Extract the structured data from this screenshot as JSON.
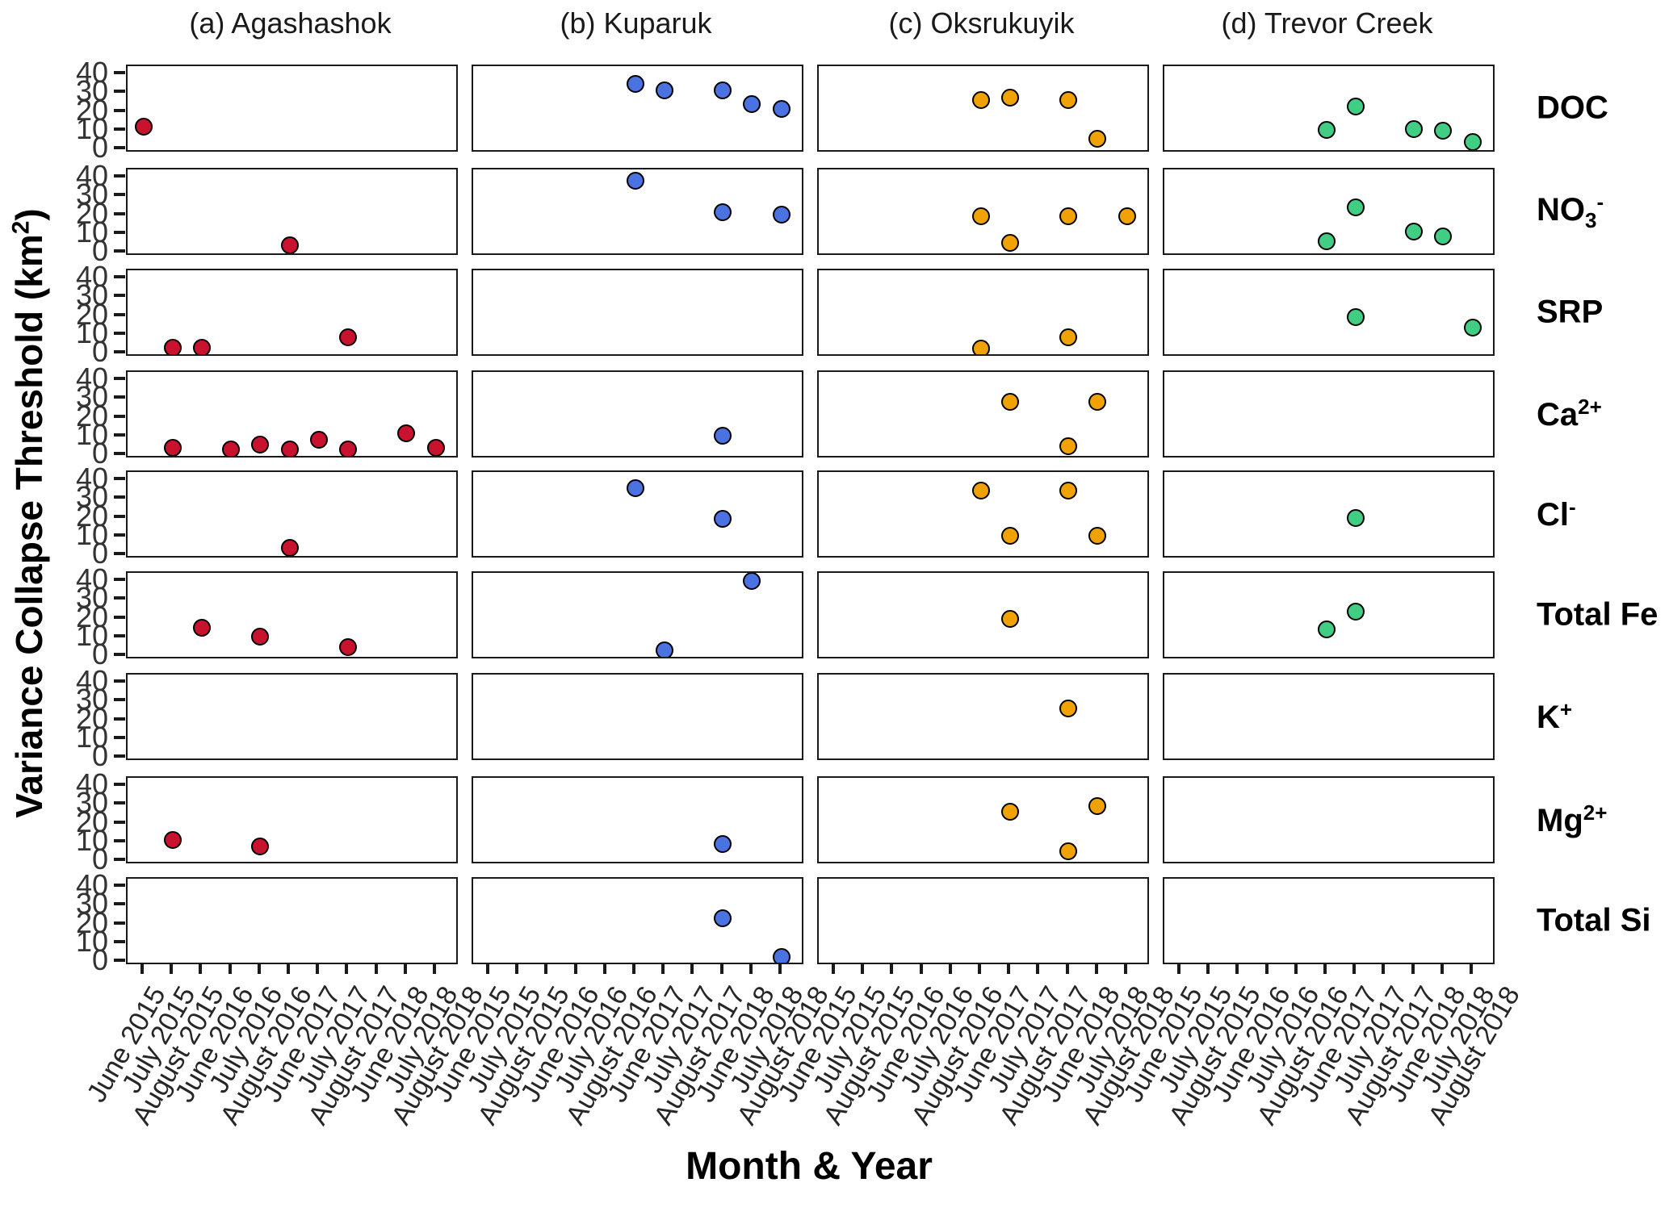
{
  "figure": {
    "x_axis_title": "Month & Year",
    "y_axis_title_segments": [
      {
        "t": "Variance Collapse Threshold (km"
      },
      {
        "t": "2",
        "s": "sup"
      },
      {
        "t": ")"
      }
    ],
    "y_tick_labels": [
      "40",
      "30",
      "20",
      "10",
      "0"
    ],
    "column_titles": [
      "(a)  Agashashok",
      "(b)  Kuparuk",
      "(c)  Oksrukuyik",
      "(d)  Trevor Creek"
    ],
    "row_label_segments": [
      [
        {
          "t": "DOC"
        }
      ],
      [
        {
          "t": "NO"
        },
        {
          "t": "3",
          "s": "sub"
        },
        {
          "t": "-",
          "s": "sup"
        }
      ],
      [
        {
          "t": "SRP"
        }
      ],
      [
        {
          "t": "Ca"
        },
        {
          "t": "2+",
          "s": "sup"
        }
      ],
      [
        {
          "t": "Cl"
        },
        {
          "t": "-",
          "s": "sup"
        }
      ],
      [
        {
          "t": "Total Fe"
        }
      ],
      [
        {
          "t": "K"
        },
        {
          "t": "+",
          "s": "sup"
        }
      ],
      [
        {
          "t": "Mg"
        },
        {
          "t": "2+",
          "s": "sup"
        }
      ],
      [
        {
          "t": "Total Si"
        }
      ]
    ]
  },
  "chart_data": {
    "type": "scatter",
    "title": "",
    "xlabel": "Month & Year",
    "ylabel": "Variance Collapse Threshold (km2)",
    "ylim": [
      0,
      40
    ],
    "yticks": [
      0,
      10,
      20,
      30,
      40
    ],
    "grid": false,
    "x_categories": [
      "June 2015",
      "July 2015",
      "August 2015",
      "June 2016",
      "July 2016",
      "August 2016",
      "June 2017",
      "July 2017",
      "August 2017",
      "June 2018",
      "July 2018",
      "August 2018"
    ],
    "analyte_rows": [
      "DOC",
      "NO3-",
      "SRP",
      "Ca2+",
      "Cl-",
      "Total Fe",
      "K+",
      "Mg2+",
      "Total Si"
    ],
    "sites": [
      {
        "name": "Agashashok",
        "panel_letter": "a",
        "color": "#C9132E",
        "analytes": {
          "DOC": [
            [
              "June 2015",
              12
            ]
          ],
          "NO3-": [
            [
              "August 2016",
              3.5
            ]
          ],
          "SRP": [
            [
              "July 2015",
              3
            ],
            [
              "August 2015",
              3
            ],
            [
              "July 2017",
              8.5
            ]
          ],
          "Ca2+": [
            [
              "July 2015",
              3.5
            ],
            [
              "June 2016",
              3
            ],
            [
              "July 2016",
              5.5
            ],
            [
              "August 2016",
              3
            ],
            [
              "June 2017",
              8
            ],
            [
              "July 2017",
              3
            ],
            [
              "June 2018",
              11.5
            ],
            [
              "July 2018",
              3.5
            ]
          ],
          "Cl-": [
            [
              "August 2016",
              3.5
            ]
          ],
          "Total Fe": [
            [
              "August 2015",
              15
            ],
            [
              "July 2016",
              10
            ],
            [
              "July 2017",
              4.5
            ]
          ],
          "K+": [],
          "Mg2+": [
            [
              "July 2015",
              11
            ],
            [
              "July 2016",
              7.5
            ]
          ],
          "Total Si": []
        }
      },
      {
        "name": "Kuparuk",
        "panel_letter": "b",
        "color": "#4A72E0",
        "analytes": {
          "DOC": [
            [
              "August 2016",
              34.5
            ],
            [
              "June 2017",
              31
            ],
            [
              "August 2017",
              31
            ],
            [
              "June 2018",
              24
            ],
            [
              "July 2018",
              21.5
            ]
          ],
          "NO3-": [
            [
              "August 2016",
              38
            ],
            [
              "August 2017",
              21.5
            ],
            [
              "July 2018",
              20
            ]
          ],
          "SRP": [],
          "Ca2+": [
            [
              "August 2017",
              10
            ]
          ],
          "Cl-": [
            [
              "August 2016",
              35.5
            ],
            [
              "August 2017",
              19
            ]
          ],
          "Total Fe": [
            [
              "June 2017",
              3
            ],
            [
              "June 2018",
              40
            ]
          ],
          "K+": [],
          "Mg2+": [
            [
              "August 2017",
              9
            ]
          ],
          "Total Si": [
            [
              "August 2017",
              23
            ],
            [
              "July 2018",
              2.5
            ]
          ]
        }
      },
      {
        "name": "Oksrukuyik",
        "panel_letter": "c",
        "color": "#F0A202",
        "analytes": {
          "DOC": [
            [
              "August 2016",
              26
            ],
            [
              "June 2017",
              27.5
            ],
            [
              "August 2017",
              26
            ],
            [
              "June 2018",
              5.5
            ]
          ],
          "NO3-": [
            [
              "August 2016",
              19
            ],
            [
              "June 2017",
              5
            ],
            [
              "August 2017",
              19
            ],
            [
              "July 2018",
              19
            ]
          ],
          "SRP": [
            [
              "August 2016",
              2.5
            ],
            [
              "August 2017",
              8.5
            ]
          ],
          "Ca2+": [
            [
              "June 2017",
              28
            ],
            [
              "August 2017",
              4.5
            ],
            [
              "June 2018",
              28
            ]
          ],
          "Cl-": [
            [
              "August 2016",
              34
            ],
            [
              "June 2017",
              10
            ],
            [
              "August 2017",
              34
            ],
            [
              "June 2018",
              10
            ]
          ],
          "Total Fe": [
            [
              "June 2017",
              19.5
            ]
          ],
          "K+": [
            [
              "August 2017",
              26
            ]
          ],
          "Mg2+": [
            [
              "June 2017",
              26
            ],
            [
              "August 2017",
              5
            ],
            [
              "June 2018",
              29
            ]
          ],
          "Total Si": []
        }
      },
      {
        "name": "Trevor Creek",
        "panel_letter": "d",
        "color": "#3FCE83",
        "analytes": {
          "DOC": [
            [
              "August 2016",
              10
            ],
            [
              "June 2017",
              22.5
            ],
            [
              "August 2017",
              10.5
            ],
            [
              "June 2018",
              9.5
            ],
            [
              "July 2018",
              3.5
            ]
          ],
          "NO3-": [
            [
              "August 2016",
              6
            ],
            [
              "June 2017",
              24
            ],
            [
              "August 2017",
              11
            ],
            [
              "June 2018",
              8.5
            ]
          ],
          "SRP": [
            [
              "June 2017",
              19
            ],
            [
              "July 2018",
              13.5
            ]
          ],
          "Ca2+": [],
          "Cl-": [
            [
              "June 2017",
              19.5
            ]
          ],
          "Total Fe": [
            [
              "August 2016",
              14
            ],
            [
              "June 2017",
              23.5
            ]
          ],
          "K+": [],
          "Mg2+": [],
          "Total Si": []
        }
      }
    ]
  }
}
